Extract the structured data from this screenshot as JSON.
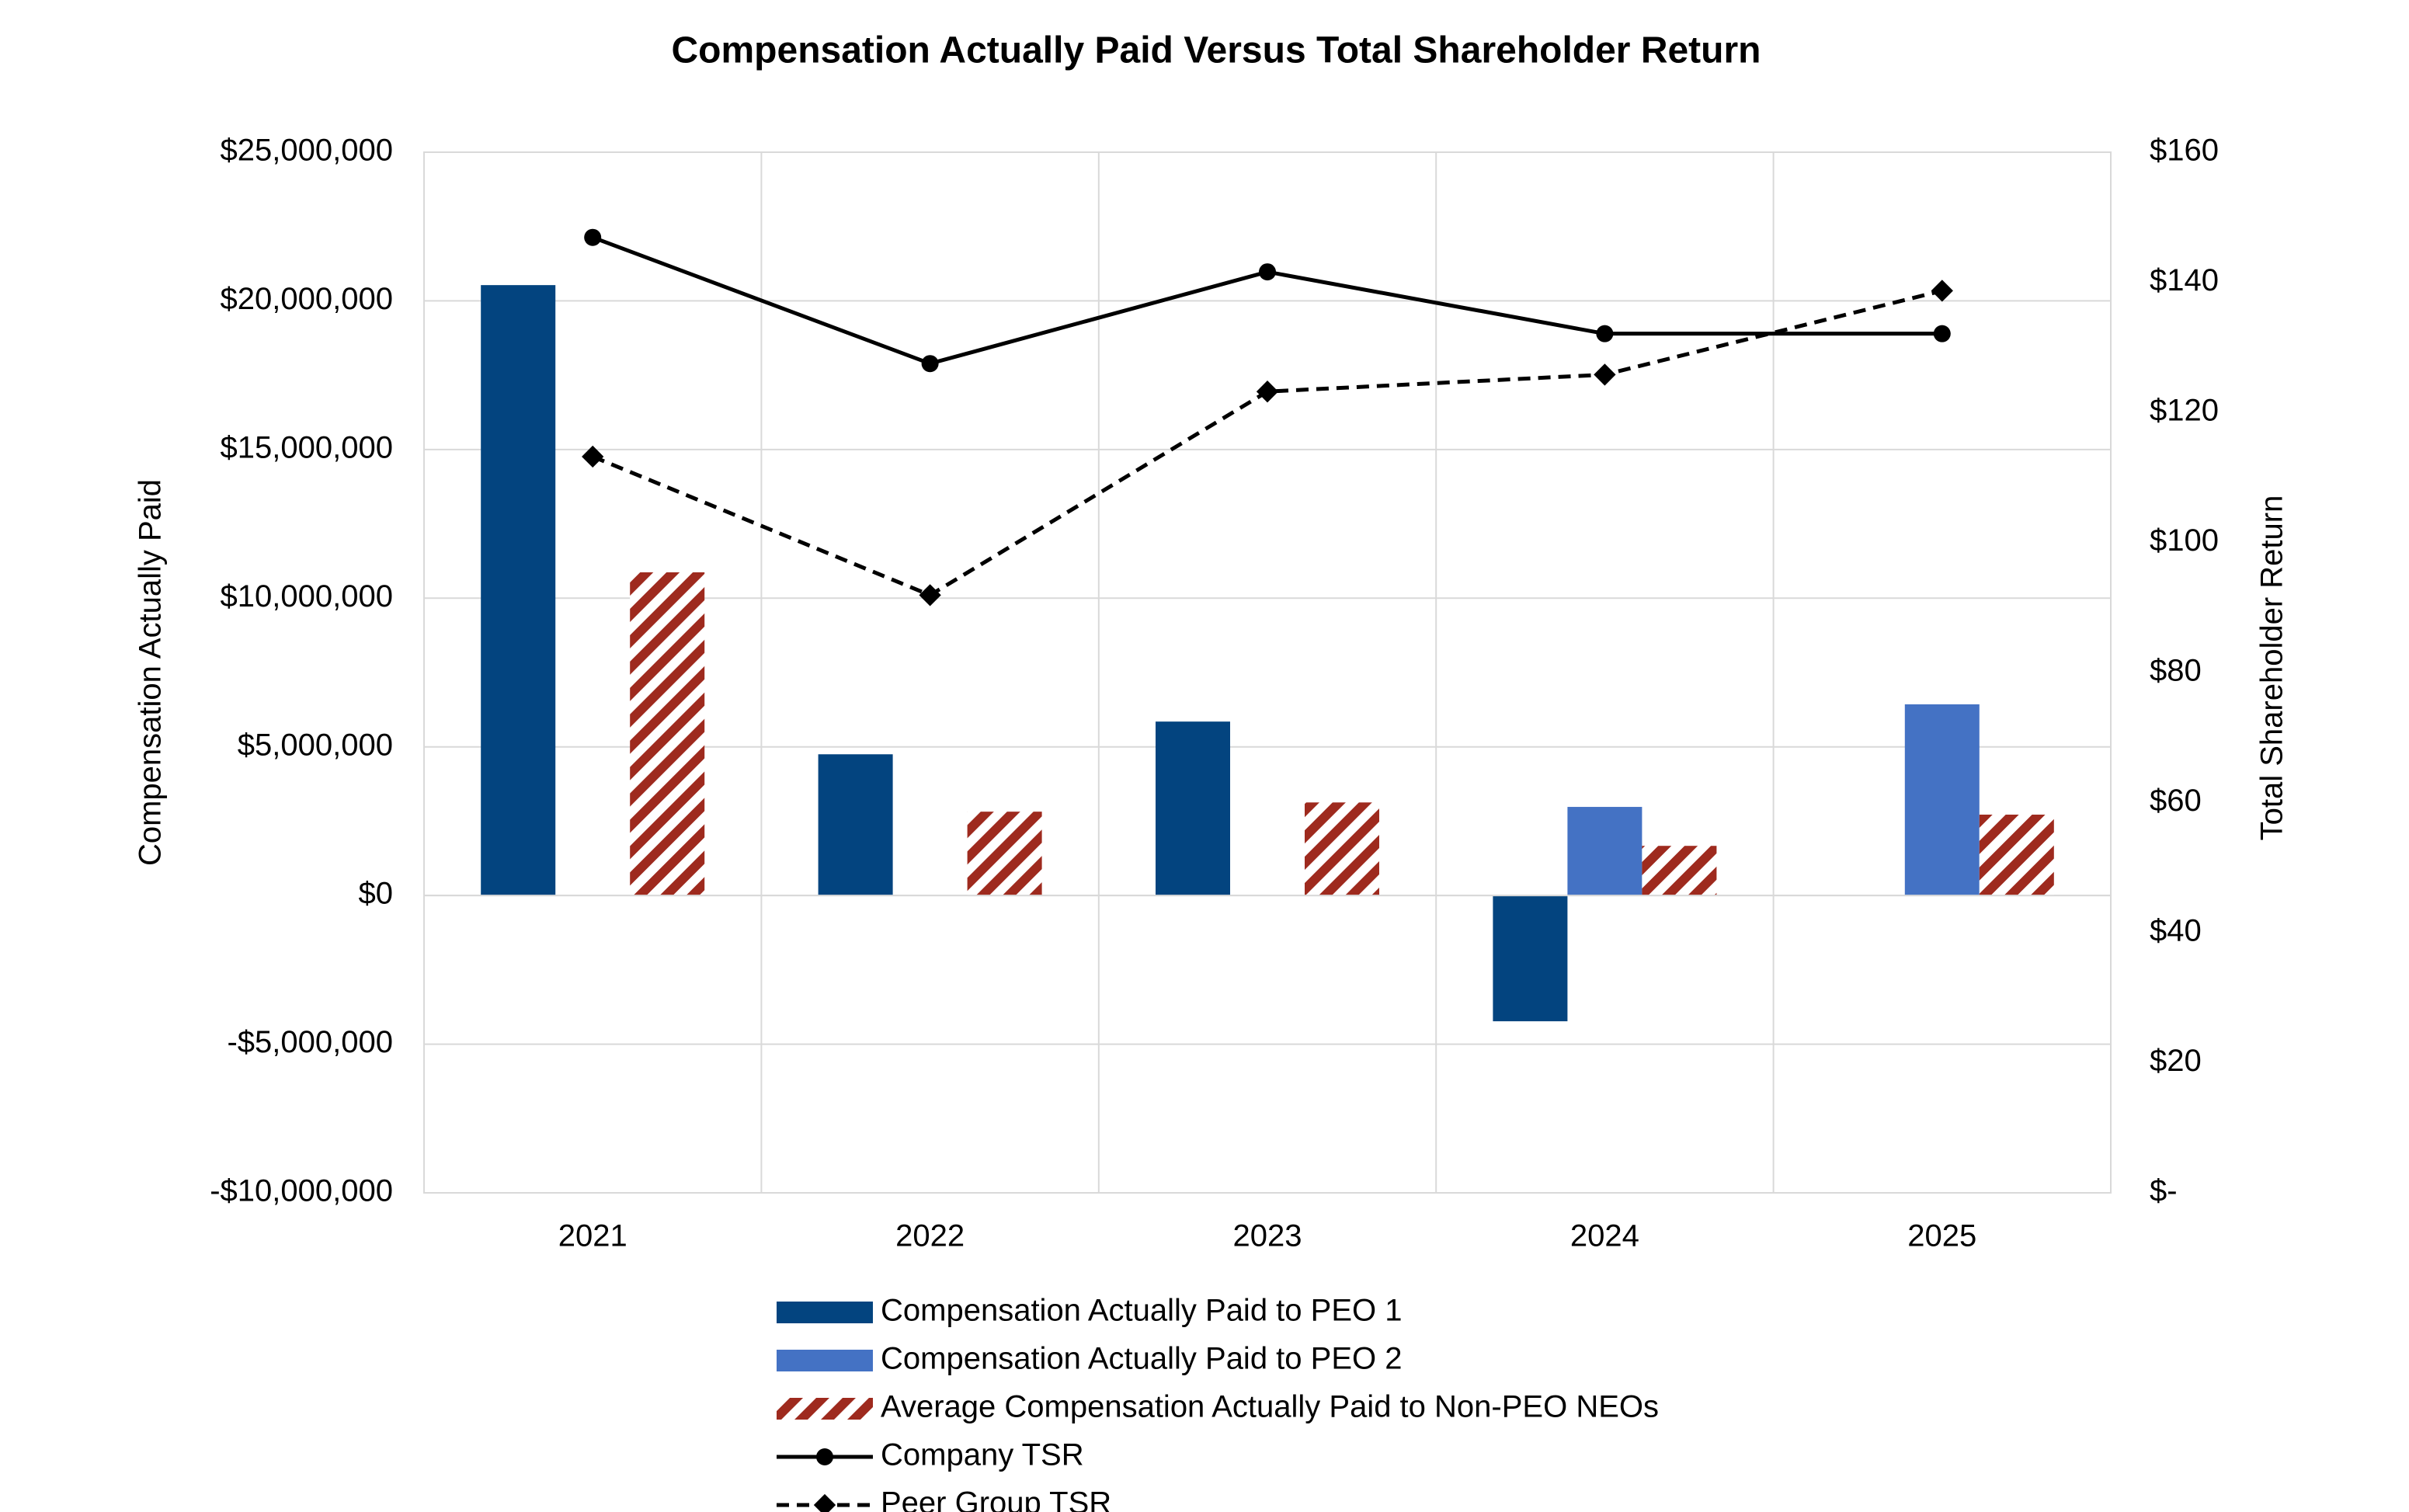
{
  "chart_data": {
    "type": "bar",
    "title": "Compensation Actually Paid Versus Total Shareholder Return",
    "y_label": "Compensation Actually Paid",
    "y2_label": "Total Shareholder Return",
    "categories": [
      "2021",
      "2022",
      "2023",
      "2024",
      "2025"
    ],
    "series": [
      {
        "name": "Compensation Actually Paid to PEO 1",
        "type": "bar",
        "color": "#03447f",
        "values": [
          20530000,
          4750000,
          5850000,
          -4230000,
          null
        ]
      },
      {
        "name": "Compensation Actually Paid to PEO 2",
        "type": "bar",
        "color": "#4472c4",
        "values": [
          null,
          null,
          null,
          2980000,
          6430000
        ]
      },
      {
        "name": "Average Compensation Actually Paid to Non-PEO NEOs",
        "type": "bar",
        "color": "#9e2a1e",
        "hatch": true,
        "values": [
          10870000,
          2820000,
          3130000,
          1670000,
          2720000
        ]
      },
      {
        "name": "Company TSR",
        "type": "line",
        "axis": "y2",
        "color": "#000000",
        "marker": "circle",
        "dashed": false,
        "values": [
          146.9,
          127.5,
          141.6,
          132.1,
          132.1
        ]
      },
      {
        "name": "Peer Group TSR",
        "type": "line",
        "axis": "y2",
        "color": "#000000",
        "marker": "diamond",
        "dashed": true,
        "values": [
          113.2,
          91.9,
          123.2,
          125.8,
          138.7
        ]
      }
    ],
    "ylim": [
      -10000000,
      25000000
    ],
    "yticks": [
      {
        "value": -10000000,
        "label": "-$10,000,000"
      },
      {
        "value": -5000000,
        "label": "-$5,000,000"
      },
      {
        "value": 0,
        "label": "$0"
      },
      {
        "value": 5000000,
        "label": "$5,000,000"
      },
      {
        "value": 10000000,
        "label": "$10,000,000"
      },
      {
        "value": 15000000,
        "label": "$15,000,000"
      },
      {
        "value": 20000000,
        "label": "$20,000,000"
      },
      {
        "value": 25000000,
        "label": "$25,000,000"
      }
    ],
    "y2lim": [
      0,
      160
    ],
    "y2ticks": [
      {
        "value": 0,
        "label": "$-"
      },
      {
        "value": 20,
        "label": "$20"
      },
      {
        "value": 40,
        "label": "$40"
      },
      {
        "value": 60,
        "label": "$60"
      },
      {
        "value": 80,
        "label": "$80"
      },
      {
        "value": 100,
        "label": "$100"
      },
      {
        "value": 120,
        "label": "$120"
      },
      {
        "value": 140,
        "label": "$140"
      },
      {
        "value": 160,
        "label": "$160"
      }
    ],
    "grid": true,
    "legend": "bottom"
  }
}
